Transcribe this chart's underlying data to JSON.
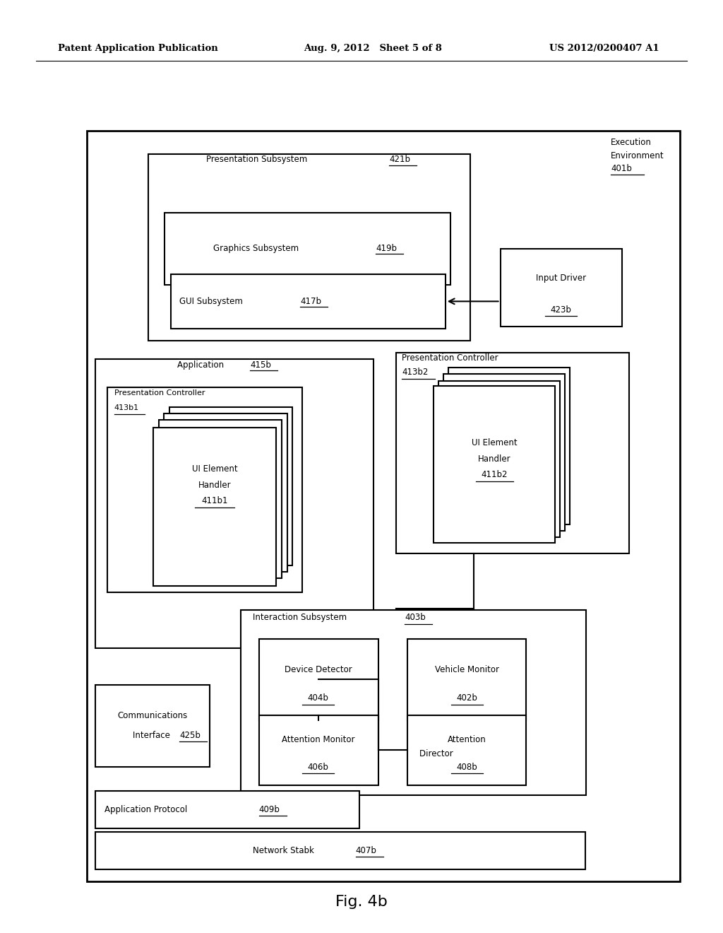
{
  "background_color": "#ffffff",
  "header_left": "Patent Application Publication",
  "header_mid": "Aug. 9, 2012   Sheet 5 of 8",
  "header_right": "US 2012/0200407 A1",
  "caption": "Fig. 4b"
}
